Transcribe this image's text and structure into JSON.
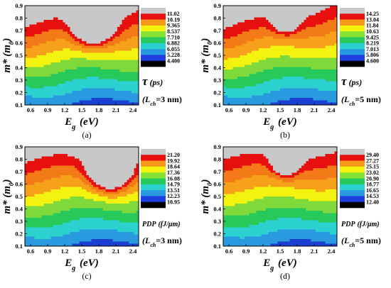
{
  "colors": {
    "levels": [
      "#1a3fd1",
      "#2a9ae0",
      "#2bd1cf",
      "#27c95a",
      "#7fd93a",
      "#f4f20f",
      "#f7a11a",
      "#f37a16",
      "#e80f0f",
      "#c8c8c8"
    ],
    "colorbar": [
      "#000000",
      "#1f3fe0",
      "#2a9ae0",
      "#2bd1cf",
      "#27c95a",
      "#86e232",
      "#f4f20f",
      "#f59a1a",
      "#e80f0f",
      "#c8c8c8"
    ]
  },
  "chart_data": [
    {
      "type": "heatmap",
      "panel_label": "(a)",
      "xlabel": "Eg (eV)",
      "ylabel": "m* (m0)",
      "x_ticks": [
        "0.6",
        "0.9",
        "1.2",
        "1.5",
        "1.8",
        "2.1",
        "2.4"
      ],
      "y_ticks": [
        "0.1",
        "0.2",
        "0.3",
        "0.4",
        "0.5",
        "0.6",
        "0.7",
        "0.8",
        "0.9"
      ],
      "xlim": [
        0.5,
        2.5
      ],
      "ylim": [
        0.1,
        0.9
      ],
      "quantity": {
        "symbol": "τ",
        "unit": "(ps)",
        "condition_sub": "ch",
        "condition": "=3 nm"
      },
      "colorbar_ticks": [
        "11.02",
        "10.19",
        "9.365",
        "8.537",
        "7.710",
        "6.882",
        "6.055",
        "5.228",
        "4.400"
      ],
      "contour_levels": [
        4.4,
        5.228,
        6.055,
        6.882,
        7.71,
        8.537,
        9.365,
        10.19,
        11.02
      ],
      "field_params": {
        "zmin": 4.4,
        "zmax": 11.5,
        "ky": 1.0,
        "kx": 0.15,
        "hot": 2.0,
        "hx": 0.6,
        "hy": 0.83,
        "hs": 0.19
      }
    },
    {
      "type": "heatmap",
      "panel_label": "(b)",
      "xlabel": "Eg (eV)",
      "ylabel": "m* (m0)",
      "x_ticks": [
        "0.6",
        "0.9",
        "1.2",
        "1.5",
        "1.8",
        "2.1",
        "2.4"
      ],
      "y_ticks": [
        "0.1",
        "0.2",
        "0.3",
        "0.4",
        "0.5",
        "0.6",
        "0.7",
        "0.8",
        "0.9"
      ],
      "xlim": [
        0.5,
        2.5
      ],
      "ylim": [
        0.1,
        0.9
      ],
      "quantity": {
        "symbol": "τ",
        "unit": "(ps)",
        "condition_sub": "ch",
        "condition": "=5 nm"
      },
      "colorbar_ticks": [
        "14.25",
        "13.04",
        "11.84",
        "10.63",
        "9.425",
        "8.219",
        "7.013",
        "5.806",
        "4.600"
      ],
      "contour_levels": [
        4.6,
        5.806,
        7.013,
        8.219,
        9.425,
        10.63,
        11.84,
        13.04,
        14.25
      ],
      "field_params": {
        "zmin": 4.6,
        "zmax": 14.8,
        "ky": 0.95,
        "kx": 0.25,
        "hot": 1.2,
        "hx": 0.55,
        "hy": 0.86,
        "hs": 0.12
      }
    },
    {
      "type": "heatmap",
      "panel_label": "(c)",
      "xlabel": "Eg (eV)",
      "ylabel": "m* (m0)",
      "x_ticks": [
        "0.6",
        "0.9",
        "1.2",
        "1.5",
        "1.8",
        "2.1",
        "2.4"
      ],
      "y_ticks": [
        "0.1",
        "0.2",
        "0.3",
        "0.4",
        "0.5",
        "0.6",
        "0.7",
        "0.8",
        "0.9"
      ],
      "xlim": [
        0.5,
        2.5
      ],
      "ylim": [
        0.1,
        0.9
      ],
      "quantity": {
        "symbol": "PDP",
        "unit": "(fJ/μm)",
        "condition_sub": "ch",
        "condition": "=3 nm"
      },
      "colorbar_ticks": [
        "21.20",
        "19.92",
        "18.64",
        "17.36",
        "16.08",
        "14.79",
        "13.51",
        "12.23",
        "10.95"
      ],
      "contour_levels": [
        10.95,
        12.23,
        13.51,
        14.79,
        16.08,
        17.36,
        18.64,
        19.92,
        21.2
      ],
      "field_params": {
        "zmin": 10.95,
        "zmax": 21.8,
        "ky": 1.0,
        "kx": 0.1,
        "hot": 2.3,
        "hx": 0.75,
        "hy": 0.8,
        "hs": 0.2
      }
    },
    {
      "type": "heatmap",
      "panel_label": "(d)",
      "xlabel": "Eg (eV)",
      "ylabel": "m* (m0)",
      "x_ticks": [
        "0.6",
        "0.9",
        "1.2",
        "1.5",
        "1.8",
        "2.1",
        "2.4"
      ],
      "y_ticks": [
        "0.1",
        "0.2",
        "0.3",
        "0.4",
        "0.5",
        "0.6",
        "0.7",
        "0.8",
        "0.9"
      ],
      "xlim": [
        0.5,
        2.5
      ],
      "ylim": [
        0.1,
        0.9
      ],
      "quantity": {
        "symbol": "PDP",
        "unit": "(fJ/μm)",
        "condition_sub": "ch",
        "condition": "=5 nm"
      },
      "colorbar_ticks": [
        "29.40",
        "27.27",
        "25.15",
        "23.02",
        "20.90",
        "18.77",
        "16.65",
        "14.53",
        "12.40"
      ],
      "contour_levels": [
        12.4,
        14.53,
        16.65,
        18.77,
        20.9,
        23.02,
        25.15,
        27.27,
        29.4
      ],
      "field_params": {
        "zmin": 12.4,
        "zmax": 29.8,
        "ky": 1.05,
        "kx": 0.05,
        "hot": 1.6,
        "hx": 0.55,
        "hy": 0.86,
        "hs": 0.13
      }
    }
  ]
}
